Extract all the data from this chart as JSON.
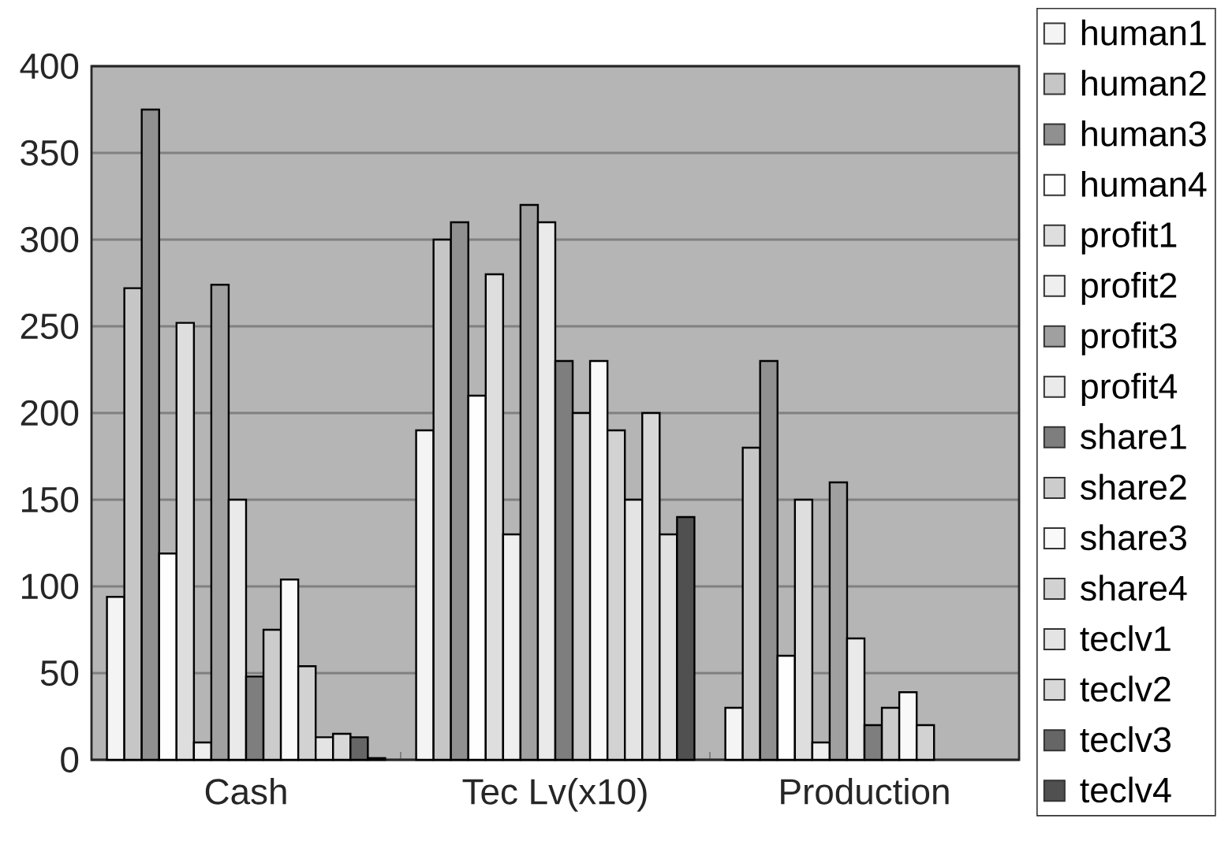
{
  "chart_data": {
    "type": "bar",
    "categories": [
      "Cash",
      "Tec Lv(x10)",
      "Production"
    ],
    "ylim": [
      0,
      400
    ],
    "yticks": [
      0,
      50,
      100,
      150,
      200,
      250,
      300,
      350,
      400
    ],
    "grid": "y",
    "legend": "right",
    "series": [
      {
        "name": "human1",
        "color": "#f4f4f4",
        "values": [
          94,
          190,
          30
        ]
      },
      {
        "name": "human2",
        "color": "#c6c6c6",
        "values": [
          272,
          300,
          180
        ]
      },
      {
        "name": "human3",
        "color": "#909090",
        "values": [
          375,
          310,
          230
        ]
      },
      {
        "name": "human4",
        "color": "#fefefe",
        "values": [
          119,
          210,
          60
        ]
      },
      {
        "name": "profit1",
        "color": "#dedede",
        "values": [
          252,
          280,
          150
        ]
      },
      {
        "name": "profit2",
        "color": "#efefef",
        "values": [
          10,
          130,
          10
        ]
      },
      {
        "name": "profit3",
        "color": "#a0a0a0",
        "values": [
          274,
          320,
          160
        ]
      },
      {
        "name": "profit4",
        "color": "#eaeaea",
        "values": [
          150,
          310,
          70
        ]
      },
      {
        "name": "share1",
        "color": "#7e7e7e",
        "values": [
          48,
          230,
          20
        ]
      },
      {
        "name": "share2",
        "color": "#cccccc",
        "values": [
          75,
          200,
          30
        ]
      },
      {
        "name": "share3",
        "color": "#f9f9f9",
        "values": [
          104,
          230,
          39
        ]
      },
      {
        "name": "share4",
        "color": "#d2d2d2",
        "values": [
          54,
          190,
          20
        ]
      },
      {
        "name": "teclv1",
        "color": "#e4e4e4",
        "values": [
          13,
          150,
          null
        ]
      },
      {
        "name": "teclv2",
        "color": "#d8d8d8",
        "values": [
          15,
          200,
          null
        ]
      },
      {
        "name": "teclv3",
        "colors": [
          "#666666",
          "#e1e1e1",
          "#666666"
        ],
        "values": [
          13,
          130,
          null
        ]
      },
      {
        "name": "teclv4",
        "color": "#505050",
        "values": [
          1,
          140,
          null
        ]
      }
    ]
  }
}
